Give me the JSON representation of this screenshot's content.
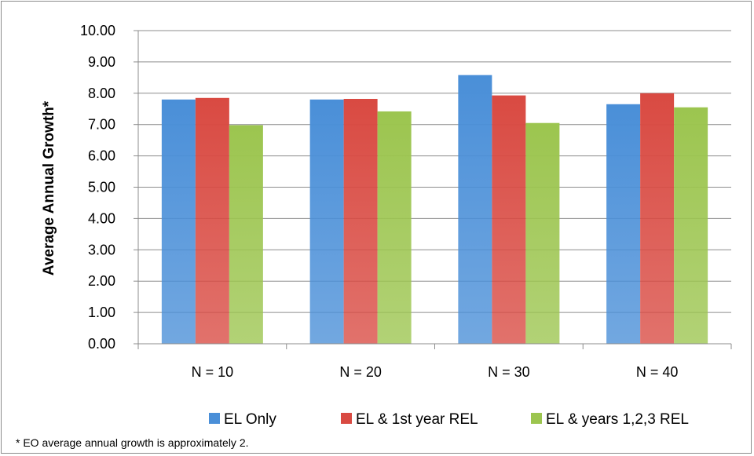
{
  "chart_data": {
    "type": "bar",
    "title": "",
    "xlabel": "",
    "ylabel": "Average Annual Growth*",
    "ylim": [
      0,
      10
    ],
    "y_ticks": [
      "0.00",
      "1.00",
      "2.00",
      "3.00",
      "4.00",
      "5.00",
      "6.00",
      "7.00",
      "8.00",
      "9.00",
      "10.00"
    ],
    "grid": true,
    "legend_position": "bottom",
    "categories": [
      "N = 10",
      "N = 20",
      "N = 30",
      "N = 40"
    ],
    "series": [
      {
        "name": "EL Only",
        "color": "#4a8fd8",
        "values": [
          7.8,
          7.8,
          8.58,
          7.65
        ]
      },
      {
        "name": "EL & 1st year REL",
        "color": "#d94a42",
        "values": [
          7.85,
          7.82,
          7.93,
          8.0
        ]
      },
      {
        "name": "EL & years 1,2,3 REL",
        "color": "#9cc54f",
        "values": [
          6.98,
          7.42,
          7.05,
          7.55
        ]
      }
    ],
    "footnote": "* EO average annual growth is approximately 2."
  }
}
